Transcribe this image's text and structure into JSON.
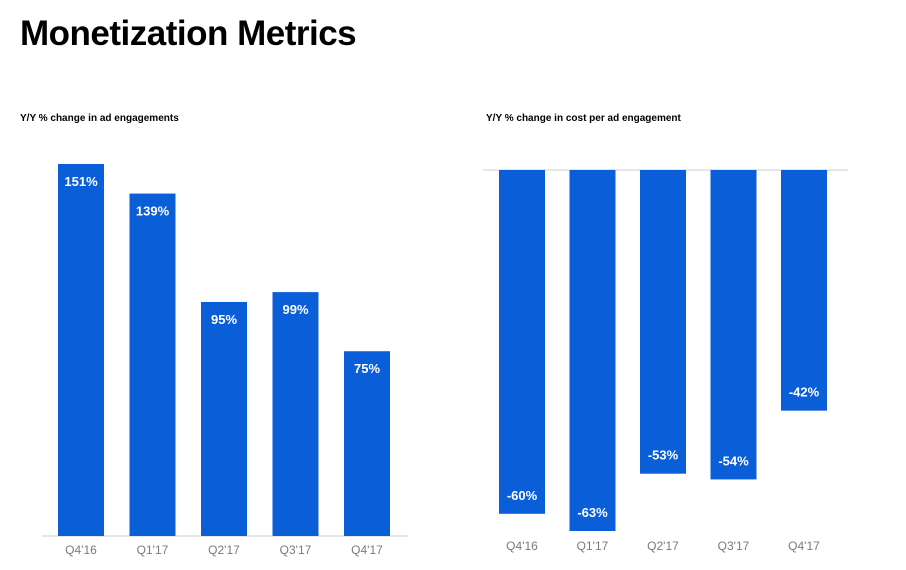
{
  "page": {
    "title": "Monetization Metrics"
  },
  "chart_data": [
    {
      "type": "bar",
      "title": "Y/Y % change in ad engagements",
      "categories": [
        "Q4'16",
        "Q1'17",
        "Q2'17",
        "Q3'17",
        "Q4'17"
      ],
      "values": [
        151,
        139,
        95,
        99,
        75
      ],
      "value_labels": [
        "151%",
        "139%",
        "95%",
        "99%",
        "75%"
      ],
      "unit": "%",
      "ylim": [
        0,
        151
      ],
      "grid": false,
      "color": "#0a5fd8"
    },
    {
      "type": "bar",
      "title": "Y/Y % change in cost per ad engagement",
      "categories": [
        "Q4'16",
        "Q1'17",
        "Q2'17",
        "Q3'17",
        "Q4'17"
      ],
      "values": [
        -60,
        -63,
        -53,
        -54,
        -42
      ],
      "value_labels": [
        "-60%",
        "-63%",
        "-53%",
        "-54%",
        "-42%"
      ],
      "unit": "%",
      "ylim": [
        -63,
        0
      ],
      "grid": false,
      "color": "#0a5fd8"
    }
  ]
}
